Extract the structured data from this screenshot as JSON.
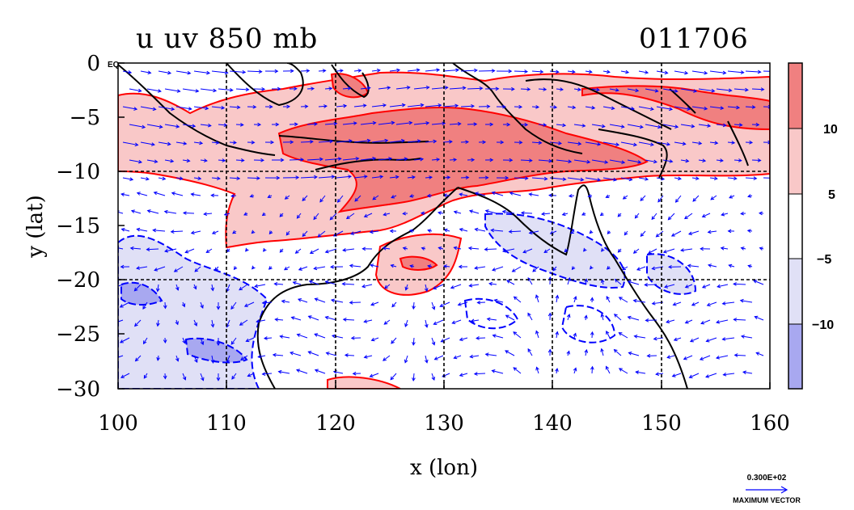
{
  "title": {
    "left": "u  uv  850  mb",
    "right": "011706"
  },
  "axes": {
    "xlabel": "x (lon)",
    "ylabel": "y (lat)",
    "xticks": [
      "100",
      "110",
      "120",
      "130",
      "140",
      "150",
      "160"
    ],
    "yticks": [
      "0",
      "−5",
      "−10",
      "−15",
      "−20",
      "−25",
      "−30"
    ],
    "eq_label": "EQ"
  },
  "colorbar": {
    "labels": [
      "10",
      "5",
      "−5",
      "−10"
    ],
    "colors": [
      "#f08080",
      "#f9c8c8",
      "#ffffff",
      "#e0e0f6",
      "#a8a8f0"
    ]
  },
  "vector_key": {
    "value": "0.300E+02",
    "label": "MAXIMUM VECTOR"
  },
  "colors": {
    "positive": "#f08080",
    "positive_light": "#f9c8c8",
    "negative_light": "#e0e0f6",
    "negative": "#a8a8f0",
    "contour_pos": "#ff0000",
    "contour_neg": "#0000ff",
    "vectors": "#0000ff",
    "coast": "#000000"
  }
}
